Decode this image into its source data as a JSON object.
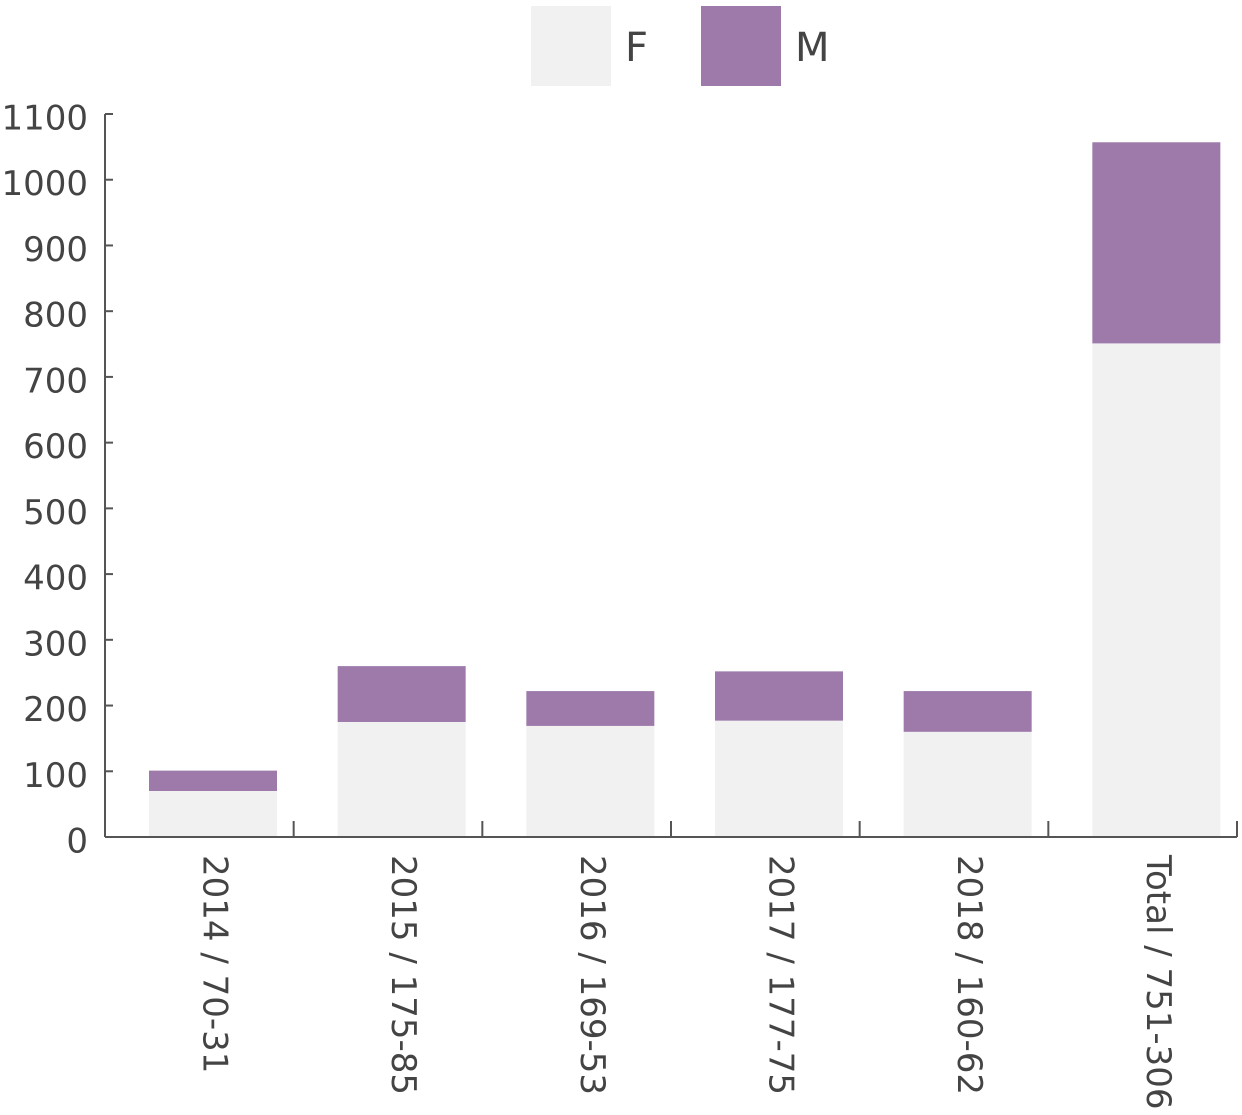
{
  "chart_data": {
    "type": "stacked_bar",
    "categories": [
      "2014 / 70-31",
      "2015 / 175-85",
      "2016 / 169-53",
      "2017 / 177-75",
      "2018 / 160-62",
      "Total / 751-306"
    ],
    "series": [
      {
        "name": "F",
        "color": "#f2f1f2",
        "values": [
          70,
          175,
          169,
          177,
          160,
          751
        ]
      },
      {
        "name": "M",
        "color": "#9e7aab",
        "values": [
          31,
          85,
          53,
          75,
          62,
          306
        ]
      }
    ],
    "ylim": [
      0,
      1100
    ],
    "yticks": [
      0,
      100,
      200,
      300,
      400,
      500,
      600,
      700,
      800,
      900,
      1000,
      1100
    ],
    "grid": false,
    "legend": "top"
  }
}
